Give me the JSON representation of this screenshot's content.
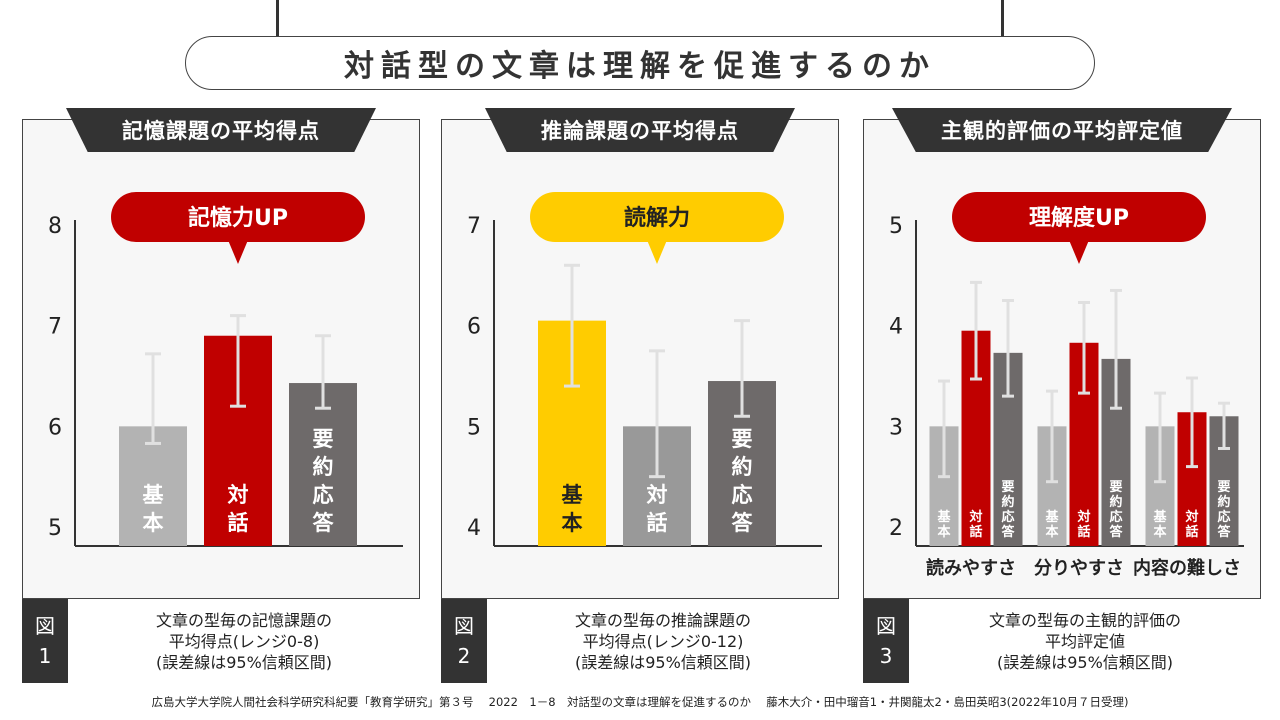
{
  "main_title": "対話型の文章は理解を促進するのか",
  "footer": "広島大学大学院人間社会科学研究科紀要「教育学研究」第３号　 2022　1－8　対話型の文章は理解を促進するのか　 藤木大介・田中瑠音1・井関龍太2・島田英昭3(2022年10月７日受理)",
  "panels": [
    {
      "header": "記憶課題の平均得点",
      "badge": "記憶力UP",
      "fig_label": [
        "図",
        "1"
      ],
      "caption": [
        "文章の型毎の記憶課題の",
        "平均得点(レンジ0-8)",
        "(誤差線は95%信頼区間)"
      ]
    },
    {
      "header": "推論課題の平均得点",
      "badge": "読解力",
      "fig_label": [
        "図",
        "2"
      ],
      "caption": [
        "文章の型毎の推論課題の",
        "平均得点(レンジ0-12)",
        "(誤差線は95%信頼区間)"
      ]
    },
    {
      "header": "主観的評価の平均評定値",
      "badge": "理解度UP",
      "fig_label": [
        "図",
        "3"
      ],
      "caption": [
        "文章の型毎の主観的評価の",
        "平均評定値",
        "(誤差線は95%信頼区間)"
      ]
    }
  ],
  "colors": {
    "red": "#c00000",
    "yellow": "#ffcc00",
    "light_gray": "#b3b3b3",
    "gray": "#999999",
    "dark_gray": "#6e6a6a",
    "header": "#333333"
  },
  "chart_data": [
    {
      "type": "bar",
      "yticks": [
        5,
        6,
        7,
        8
      ],
      "ylim": [
        5,
        8
      ],
      "categories": [
        "基本",
        "対話",
        "要約応答"
      ],
      "values": [
        6.0,
        6.9,
        6.43
      ],
      "error_low": [
        5.83,
        6.2,
        6.18
      ],
      "error_high": [
        6.72,
        7.1,
        6.9
      ],
      "bar_colors": [
        "light_gray",
        "red",
        "dark_gray"
      ],
      "badge_color": "red"
    },
    {
      "type": "bar",
      "yticks": [
        4,
        5,
        6,
        7
      ],
      "ylim": [
        4,
        7
      ],
      "categories": [
        "基本",
        "対話",
        "要約応答"
      ],
      "values": [
        6.05,
        5.0,
        5.45
      ],
      "error_low": [
        5.4,
        4.5,
        5.1
      ],
      "error_high": [
        6.6,
        5.75,
        6.05
      ],
      "bar_colors": [
        "yellow",
        "gray",
        "dark_gray"
      ],
      "label_colors": [
        "#222222",
        "#ffffff",
        "#ffffff"
      ],
      "badge_color": "yellow"
    },
    {
      "type": "bar",
      "yticks": [
        2,
        3,
        4,
        5
      ],
      "ylim": [
        2,
        5
      ],
      "groups": [
        "読みやすさ",
        "分りやすさ",
        "内容の難しさ"
      ],
      "series": [
        {
          "name": "基本",
          "color": "light_gray",
          "values": [
            3.0,
            3.0,
            3.0
          ],
          "error_low": [
            2.5,
            2.45,
            2.45
          ],
          "error_high": [
            3.45,
            3.35,
            3.33
          ]
        },
        {
          "name": "対話",
          "color": "red",
          "values": [
            3.95,
            3.83,
            3.14
          ],
          "error_low": [
            3.47,
            3.33,
            2.6
          ],
          "error_high": [
            4.43,
            4.23,
            3.48
          ]
        },
        {
          "name": "要約応答",
          "color": "dark_gray",
          "values": [
            3.73,
            3.67,
            3.1
          ],
          "error_low": [
            3.3,
            3.18,
            2.78
          ],
          "error_high": [
            4.25,
            4.35,
            3.23
          ]
        }
      ],
      "badge_color": "red"
    }
  ]
}
